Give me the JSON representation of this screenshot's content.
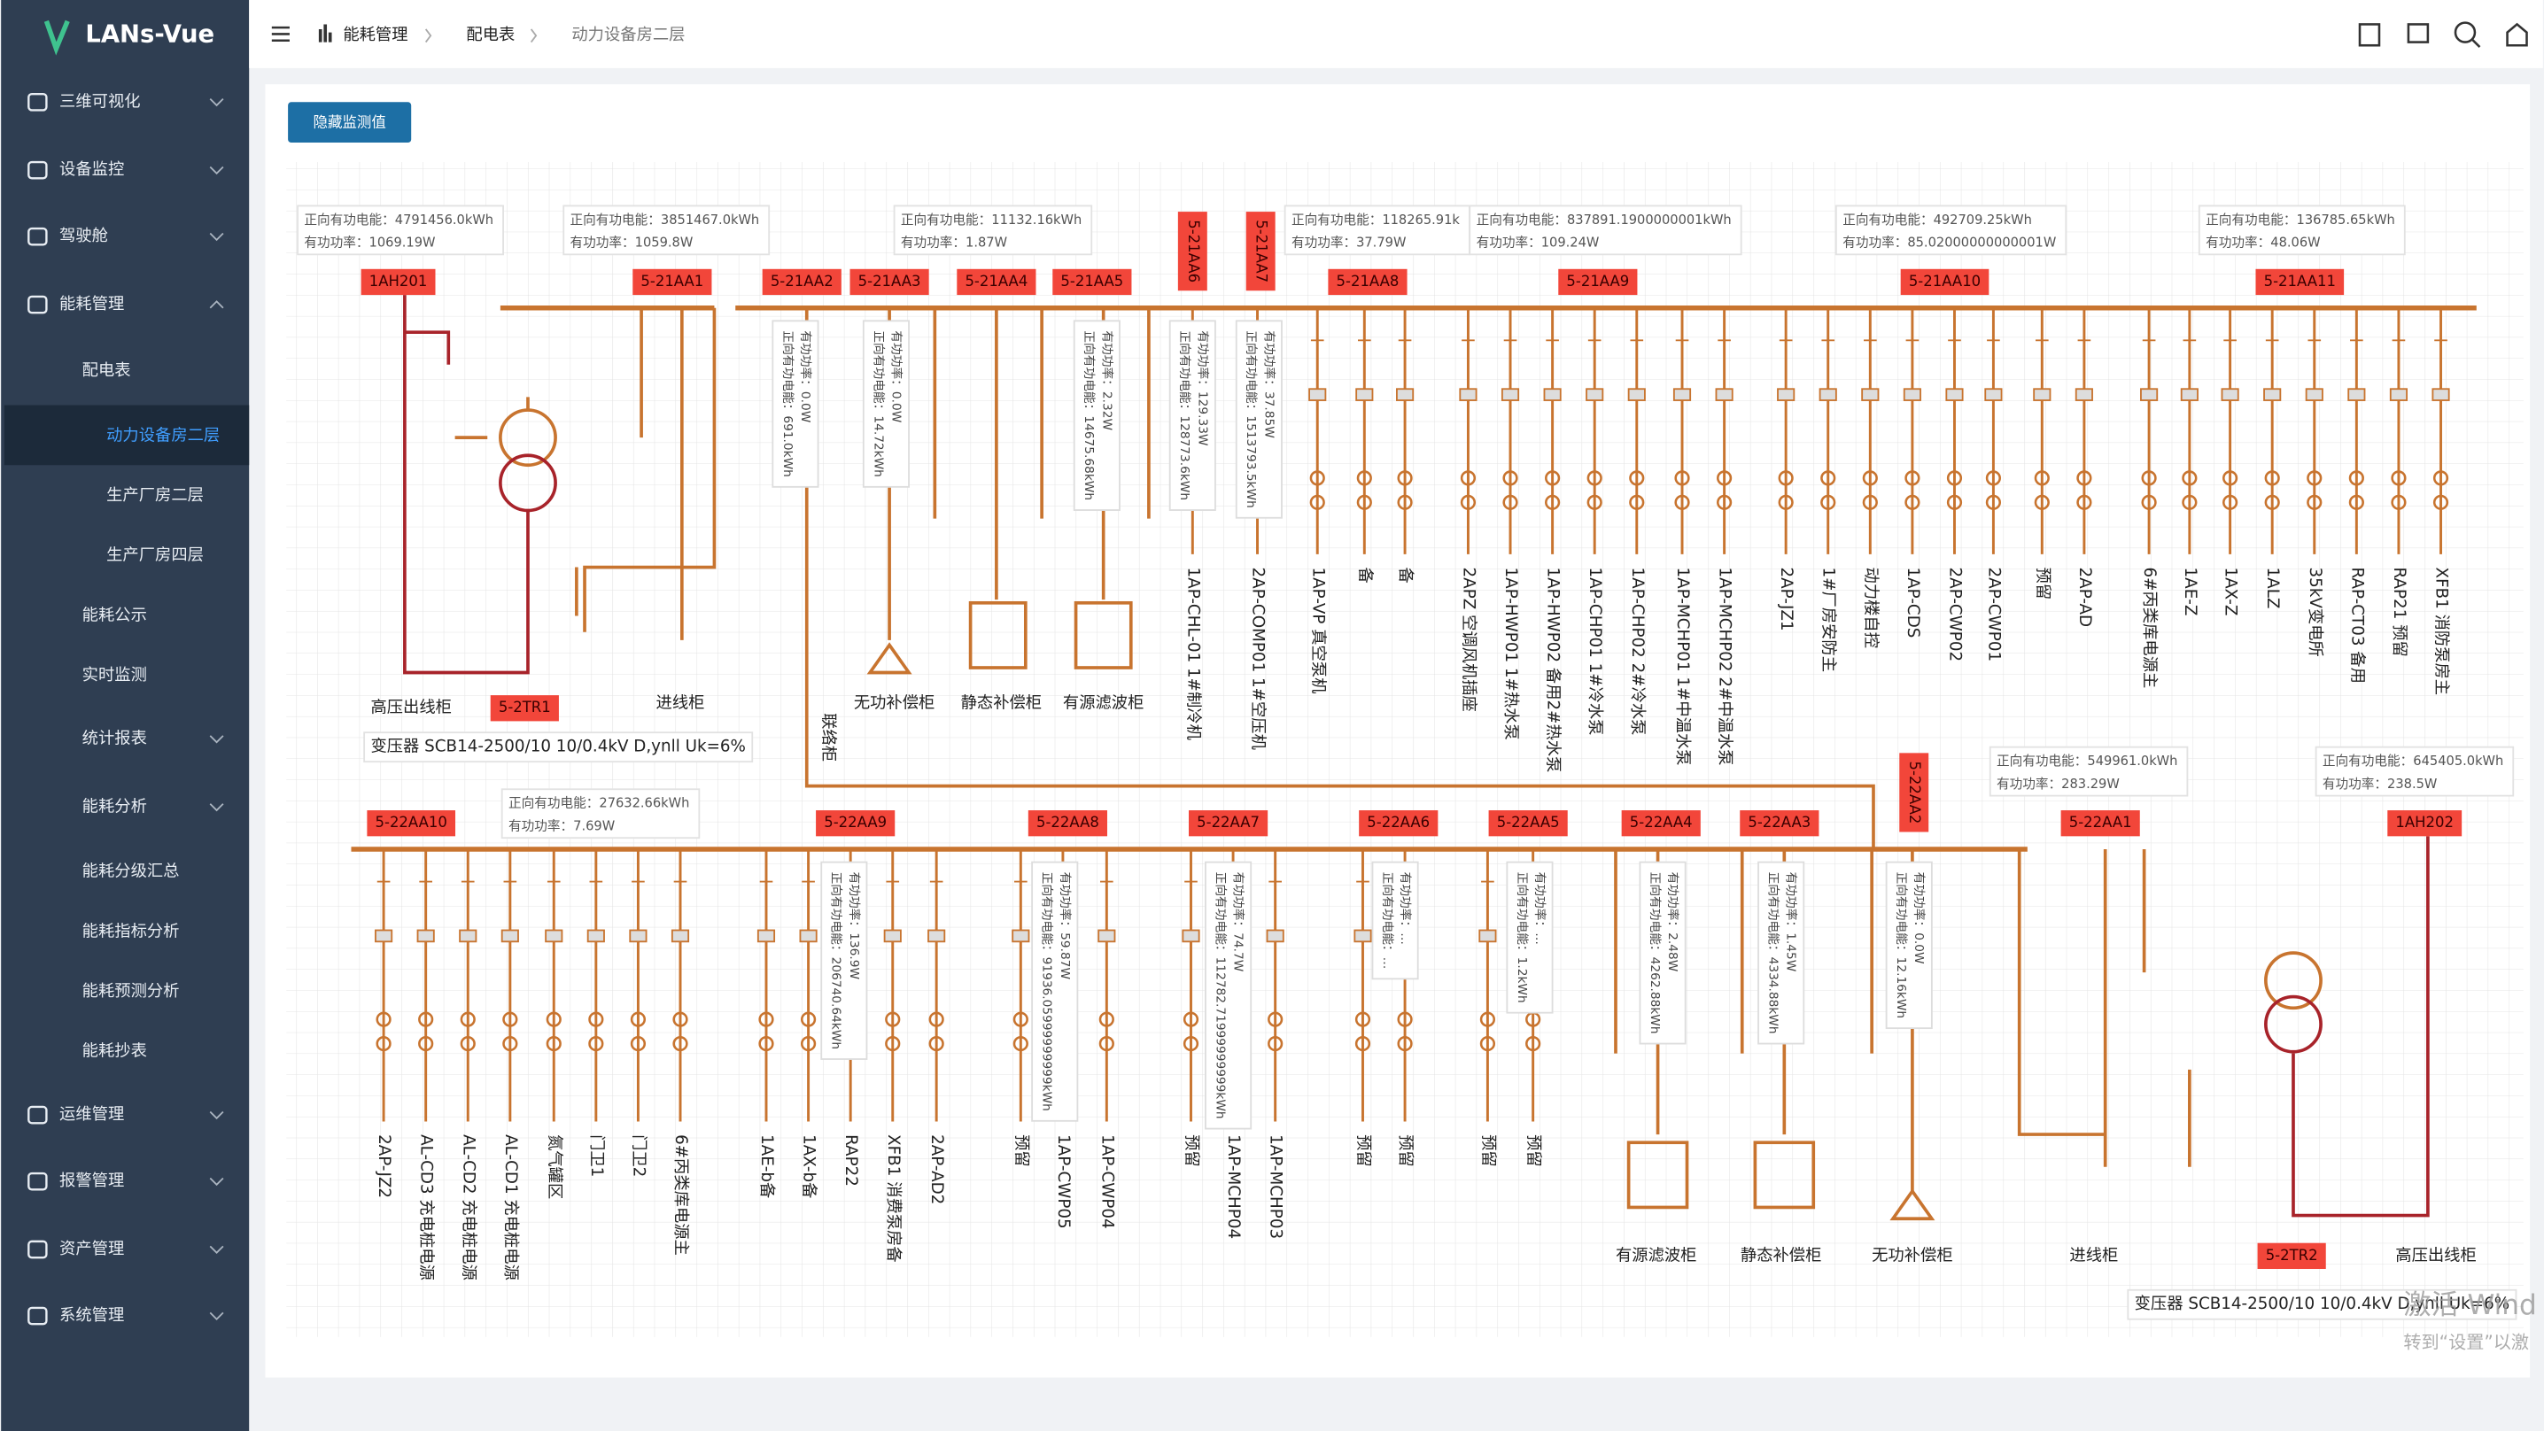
{
  "sidebar": {
    "brand": "LANs-Vue",
    "menu": [
      "三维可视化",
      "设备监控",
      "驾驶舱",
      "能耗管理",
      "配电表",
      "动力设备房二层",
      "生产厂房二层",
      "生产厂房四层",
      "能耗公示",
      "实时监测",
      "统计报表",
      "能耗分析",
      "能耗分级汇总",
      "能耗指标分析",
      "能耗预测分析",
      "能耗抄表",
      "运维管理",
      "报警管理",
      "资产管理",
      "系统管理"
    ]
  },
  "header": {
    "breadcrumb": [
      "能耗管理",
      "配电表",
      "动力设备房二层"
    ]
  },
  "toolbar": {
    "button": "隐藏监测值"
  },
  "diagram": {
    "top": {
      "tags": [
        "1AH201",
        "5-21AA1",
        "5-21AA2",
        "5-21AA3",
        "5-21AA4",
        "5-21AA5",
        "5-21AA6",
        "5-21AA7",
        "5-21AA8",
        "5-21AA9",
        "5-21AA10",
        "5-21AA11"
      ],
      "info": [
        [
          "正向有功电能：4791456.0kWh",
          "有功功率：1069.19W"
        ],
        [
          "正向有功电能：3851467.0kWh",
          "有功功率：1059.8W"
        ],
        [
          "正向有功电能：11132.16kWh",
          "有功功率：1.87W"
        ],
        [
          "正向有功电能：118265.91k",
          "有功功率：37.79W"
        ],
        [
          "正向有功电能：837891.1900000001kWh",
          "有功功率：109.24W"
        ],
        [
          "正向有功电能：492709.25kWh",
          "有功功率：85.02000000000001W"
        ],
        [
          "正向有功电能：136785.65kWh",
          "有功功率：48.06W"
        ]
      ],
      "meters": [
        [
          "有功功率：0.0W",
          "正向有功电能：691.0kWh"
        ],
        [
          "有功功率：0.0W",
          "正向有功电能：14.72kWh"
        ],
        [
          "有功功率：2.32W",
          "正向有功电能：14675.68kWh"
        ],
        [
          "有功功率：129.33W",
          "正向有功电能：128773.6kWh"
        ],
        [
          "有功功率：37.85W",
          "正向有功电能：1513793.5kWh"
        ]
      ],
      "feeders": [
        "1AP-CHL-01 1#制冷机",
        "2AP-COMP01 1#空压机",
        "1AP-VP 真空泵机",
        "备",
        "备",
        "2APZ 空调风机插座",
        "1AP-HWP01 1#热水泵",
        "1AP-HWP02 备用2#热水泵",
        "1AP-CHP01 1#冷水泵",
        "1AP-CHP02 2#冷水泵",
        "1AP-MCHP01 1#中温水泵",
        "1AP-MCHP02 2#中温水泵",
        "2AP-JZ1",
        "1#厂房安防主",
        "动力楼自控",
        "1AP-CDS",
        "2AP-CWP02",
        "2AP-CWP01",
        "预留",
        "2AP-AD",
        "6#丙类库电源主",
        "1AE-Z",
        "1AX-Z",
        "1ALZ",
        "35kV变电所",
        "RAP-CT03 备用",
        "RAP21 预留",
        "XFB1 消防泵房主"
      ],
      "equipment": [
        "高压出线柜",
        "5-2TR1",
        "进线柜",
        "无功补偿柜",
        "静态补偿柜",
        "有源滤波柜",
        "联络柜"
      ],
      "transformer": "变压器 SCB14-2500/10 10/0.4kV D,ynll Uk=6%"
    },
    "bottom": {
      "tags": [
        "5-22AA10",
        "5-22AA9",
        "5-22AA8",
        "5-22AA7",
        "5-22AA6",
        "5-22AA5",
        "5-22AA4",
        "5-22AA3",
        "5-22AA2",
        "5-22AA1",
        "1AH202"
      ],
      "info": [
        [
          "正向有功电能：27632.66kWh",
          "有功功率：7.69W"
        ],
        [
          "正向有功电能：549961.0kWh",
          "有功功率：283.29W"
        ],
        [
          "正向有功电能：645405.0kWh",
          "有功功率：238.5W"
        ]
      ],
      "meters": [
        [
          "有功功率：136.9W",
          "正向有功电能：206740.64kWh"
        ],
        [
          "有功功率：59.87W",
          "正向有功电能：91936.05999999999kWh"
        ],
        [
          "有功功率：74.7W",
          "正向有功电能：112782.71999999999kWh"
        ],
        [
          "有功功率：…",
          "正向有功电能：…"
        ],
        [
          "有功功率：…",
          "正向有功电能：1.2kWh"
        ],
        [
          "有功功率：2.48W",
          "正向有功电能：4262.88kWh"
        ],
        [
          "有功功率：1.45W",
          "正向有功电能：4334.88kWh"
        ],
        [
          "有功功率：0.0W",
          "正向有功电能：12.16kWh"
        ]
      ],
      "feeders": [
        "2AP-JZ2",
        "AL-CD3 充电桩电源",
        "AL-CD2 充电桩电源",
        "AL-CD1 充电桩电源",
        "氮气罐区",
        "门卫1",
        "门卫2",
        "6#丙类库电源主",
        "1AE-b备",
        "1AX-b备",
        "RAP22",
        "XFB1 消费泵房备",
        "2AP-AD2",
        "预留",
        "1AP-CWP05",
        "1AP-CWP04",
        "预留",
        "1AP-MCHP04",
        "1AP-MCHP03",
        "预留",
        "预留",
        "预留",
        "预留"
      ],
      "equipment": [
        "有源滤波柜",
        "静态补偿柜",
        "无功补偿柜",
        "进线柜",
        "5-2TR2",
        "高压出线柜"
      ],
      "transformer": "变压器 SCB14-2500/10 10/0.4kV D,ynll Uk=6%"
    }
  },
  "watermark": [
    "激活 Wind",
    "转到“设置”以激"
  ]
}
